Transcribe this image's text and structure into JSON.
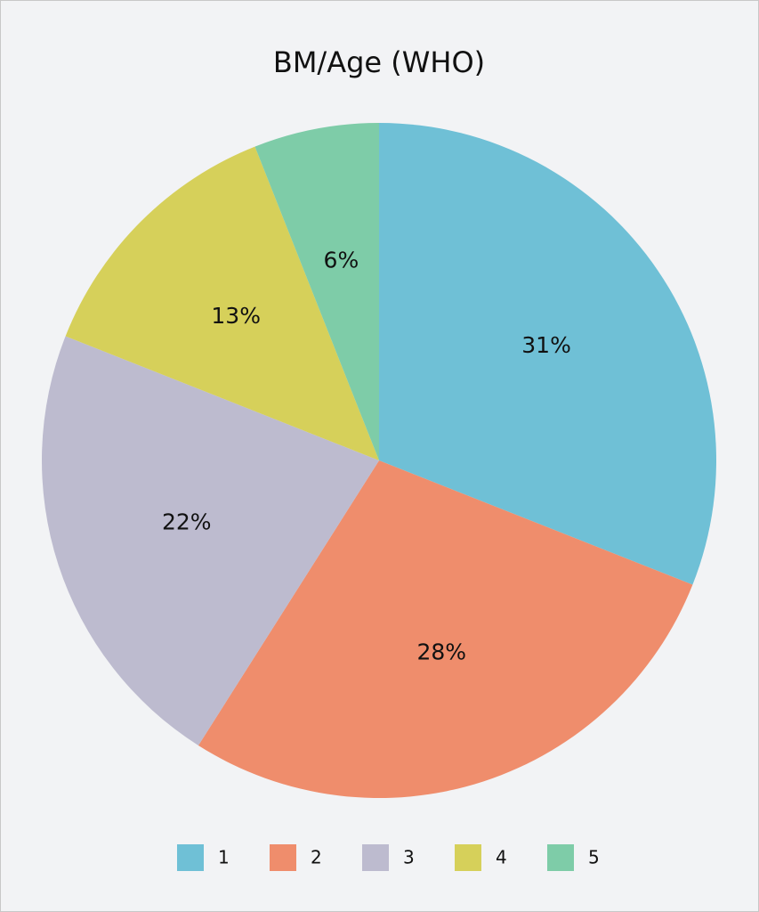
{
  "chart_data": {
    "type": "pie",
    "title": "BM/Age (WHO)",
    "categories": [
      "1",
      "2",
      "3",
      "4",
      "5"
    ],
    "values": [
      31,
      28,
      22,
      13,
      6
    ],
    "value_labels": [
      "31%",
      "28%",
      "22%",
      "13%",
      "6%"
    ],
    "colors": [
      "#6fc0d6",
      "#ef8d6c",
      "#bdbbcf",
      "#d6d05a",
      "#7ecca8"
    ],
    "legend": "bottom"
  }
}
